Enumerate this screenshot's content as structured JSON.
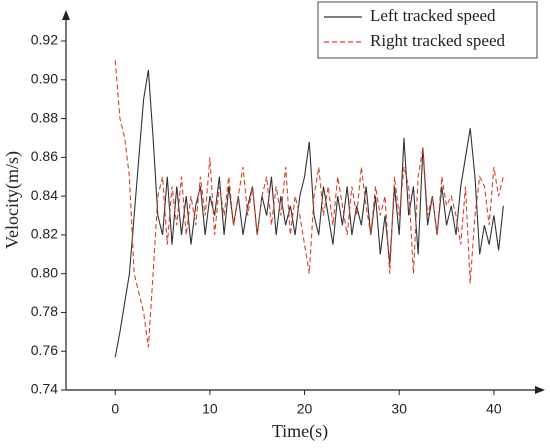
{
  "chart_data": {
    "type": "line",
    "xlabel": "Time(s)",
    "ylabel": "Velocity(m/s)",
    "x": [
      0,
      0.5,
      1,
      1.5,
      2,
      2.5,
      3,
      3.5,
      4,
      4.5,
      5,
      5.5,
      6,
      6.5,
      7,
      7.5,
      8,
      8.5,
      9,
      9.5,
      10,
      10.5,
      11,
      11.5,
      12,
      12.5,
      13,
      13.5,
      14,
      14.5,
      15,
      15.5,
      16,
      16.5,
      17,
      17.5,
      18,
      18.5,
      19,
      19.5,
      20,
      20.5,
      21,
      21.5,
      22,
      22.5,
      23,
      23.5,
      24,
      24.5,
      25,
      25.5,
      26,
      26.5,
      27,
      27.5,
      28,
      28.5,
      29,
      29.5,
      30,
      30.5,
      31,
      31.5,
      32,
      32.5,
      33,
      33.5,
      34,
      34.5,
      35,
      35.5,
      36,
      36.5,
      37,
      37.5,
      38,
      38.5,
      39,
      39.5,
      40,
      40.5,
      41
    ],
    "series": [
      {
        "name": "Left tracked speed",
        "color": "#333333",
        "dash": false,
        "values": [
          0.757,
          0.77,
          0.785,
          0.8,
          0.83,
          0.86,
          0.89,
          0.905,
          0.87,
          0.83,
          0.82,
          0.85,
          0.815,
          0.845,
          0.82,
          0.84,
          0.815,
          0.835,
          0.845,
          0.82,
          0.84,
          0.83,
          0.85,
          0.82,
          0.845,
          0.825,
          0.84,
          0.82,
          0.835,
          0.845,
          0.82,
          0.84,
          0.83,
          0.85,
          0.82,
          0.84,
          0.825,
          0.835,
          0.82,
          0.84,
          0.85,
          0.868,
          0.83,
          0.82,
          0.845,
          0.83,
          0.815,
          0.84,
          0.825,
          0.845,
          0.82,
          0.835,
          0.825,
          0.845,
          0.82,
          0.84,
          0.81,
          0.83,
          0.805,
          0.845,
          0.82,
          0.87,
          0.83,
          0.845,
          0.81,
          0.865,
          0.825,
          0.84,
          0.82,
          0.845,
          0.825,
          0.835,
          0.82,
          0.845,
          0.86,
          0.875,
          0.85,
          0.81,
          0.825,
          0.815,
          0.83,
          0.812,
          0.835
        ]
      },
      {
        "name": "Right tracked speed",
        "color": "#d9402b",
        "dash": true,
        "values": [
          0.91,
          0.88,
          0.87,
          0.85,
          0.8,
          0.79,
          0.78,
          0.762,
          0.8,
          0.84,
          0.85,
          0.815,
          0.845,
          0.825,
          0.85,
          0.82,
          0.84,
          0.825,
          0.85,
          0.83,
          0.86,
          0.82,
          0.845,
          0.83,
          0.85,
          0.825,
          0.84,
          0.855,
          0.83,
          0.845,
          0.82,
          0.84,
          0.85,
          0.825,
          0.845,
          0.83,
          0.855,
          0.82,
          0.84,
          0.83,
          0.815,
          0.8,
          0.84,
          0.855,
          0.83,
          0.845,
          0.825,
          0.85,
          0.835,
          0.82,
          0.845,
          0.83,
          0.855,
          0.835,
          0.82,
          0.845,
          0.83,
          0.84,
          0.8,
          0.85,
          0.83,
          0.855,
          0.845,
          0.8,
          0.85,
          0.865,
          0.83,
          0.84,
          0.82,
          0.85,
          0.835,
          0.84,
          0.83,
          0.815,
          0.845,
          0.795,
          0.83,
          0.85,
          0.845,
          0.825,
          0.855,
          0.84,
          0.85
        ]
      }
    ],
    "xlim": [
      -5.2,
      45.4
    ],
    "xticks": [
      0,
      10,
      20,
      30,
      40
    ],
    "ylim": [
      0.74,
      0.936
    ],
    "yticks": [
      {
        "value": 0.74,
        "label": "0.74"
      },
      {
        "value": 0.76,
        "label": "0.76"
      },
      {
        "value": 0.78,
        "label": "0.78"
      },
      {
        "value": 0.8,
        "label": "0.80"
      },
      {
        "value": 0.82,
        "label": "0.82"
      },
      {
        "value": 0.84,
        "label": "0.84"
      },
      {
        "value": 0.86,
        "label": "0.86"
      },
      {
        "value": 0.88,
        "label": "0.88"
      },
      {
        "value": 0.9,
        "label": "0.90"
      },
      {
        "value": 0.92,
        "label": "0.92"
      }
    ],
    "legend": "upper right"
  }
}
